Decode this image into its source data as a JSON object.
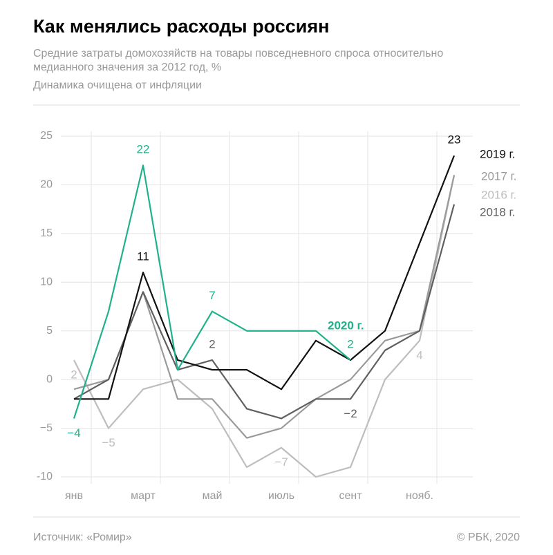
{
  "chart_data": {
    "type": "line",
    "title": "Как менялись расходы россиян",
    "subtitle": [
      "Средние затраты домохозяйств на товары повседневного спроса относительно",
      "медианного значения за 2012 год, %"
    ],
    "note": "Динамика очищена от инфляции",
    "source": "Источник: «Ромир»",
    "credit": "© РБК, 2020",
    "categories": [
      "янв",
      null,
      "март",
      null,
      "май",
      null,
      "июль",
      null,
      "сент",
      null,
      "нояб.",
      null
    ],
    "ylim": [
      -10,
      25
    ],
    "yticks": [
      -10,
      {
        "value": -5,
        "label": "−5"
      },
      0,
      5,
      10,
      15,
      20,
      25
    ],
    "grid": true,
    "series": [
      {
        "name": "2016 г.",
        "color": "#bdbdbd",
        "values": [
          2,
          -5,
          -1,
          0,
          -3,
          -9,
          -7,
          -10,
          -9,
          0,
          4,
          21
        ],
        "value_labels": [
          "2",
          "−5",
          null,
          null,
          null,
          null,
          "−7",
          null,
          null,
          null,
          "4",
          null
        ]
      },
      {
        "name": "2017 г.",
        "color": "#9a9a9a",
        "values": [
          -1,
          0,
          9,
          -2,
          -2,
          -6,
          -5,
          -2,
          0,
          4,
          5,
          21
        ],
        "value_labels": [
          null,
          null,
          null,
          null,
          null,
          null,
          null,
          null,
          null,
          null,
          null,
          null
        ]
      },
      {
        "name": "2018 г.",
        "color": "#5f5f5f",
        "values": [
          -2,
          0,
          9,
          1,
          2,
          -3,
          -4,
          -2,
          -2,
          3,
          5,
          18
        ],
        "value_labels": [
          null,
          null,
          null,
          null,
          "2",
          null,
          null,
          null,
          "−2",
          null,
          null,
          null
        ]
      },
      {
        "name": "2019 г.",
        "color": "#111111",
        "values": [
          -2,
          -2,
          11,
          2,
          1,
          1,
          -1,
          4,
          2,
          5,
          14,
          23
        ],
        "value_labels": [
          null,
          null,
          "11",
          null,
          null,
          null,
          null,
          null,
          null,
          null,
          null,
          "23"
        ]
      },
      {
        "name": "2020 г.",
        "color": "#1fb28a",
        "values": [
          -4,
          7,
          22,
          1,
          7,
          5,
          5,
          5,
          2,
          null,
          null,
          null
        ],
        "value_labels": [
          "−4",
          null,
          "22",
          null,
          "7",
          null,
          null,
          null,
          "2",
          null,
          null,
          null
        ]
      }
    ]
  }
}
